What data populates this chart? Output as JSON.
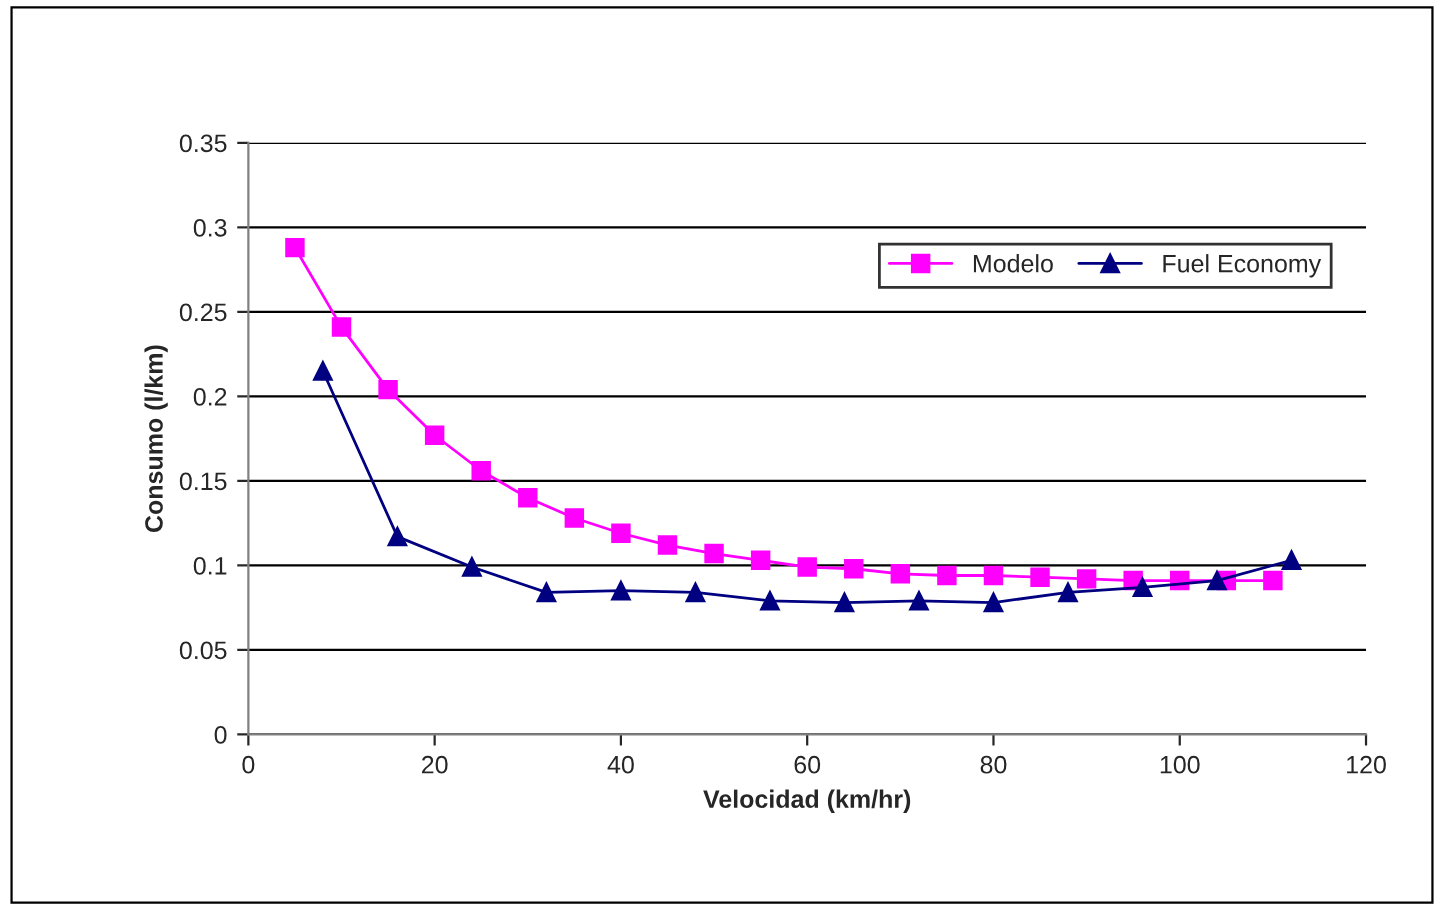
{
  "chart_data": {
    "type": "line",
    "xlabel": "Velocidad (km/hr)",
    "ylabel": "Consumo (l/km)",
    "xlim": [
      0,
      120
    ],
    "xticks": [
      0,
      20,
      40,
      60,
      80,
      100,
      120
    ],
    "ylim": [
      0,
      0.35
    ],
    "yticks": [
      0,
      0.05,
      0.1,
      0.15,
      0.2,
      0.25,
      0.3,
      0.35
    ],
    "grid": "y",
    "legend": "top right",
    "series": [
      {
        "name": "Modelo",
        "color": "#ff00ff",
        "marker": "square",
        "x": [
          5,
          10,
          15,
          20,
          25,
          30,
          35,
          40,
          45,
          50,
          55,
          60,
          65,
          70,
          75,
          80,
          85,
          90,
          95,
          100,
          105,
          110
        ],
        "values": [
          0.288,
          0.241,
          0.204,
          0.177,
          0.156,
          0.14,
          0.128,
          0.119,
          0.112,
          0.107,
          0.103,
          0.099,
          0.098,
          0.095,
          0.094,
          0.094,
          0.093,
          0.092,
          0.091,
          0.091,
          0.091,
          0.091
        ]
      },
      {
        "name": "Fuel Economy",
        "color": "#000080",
        "marker": "triangle",
        "x": [
          8,
          16,
          24,
          32,
          40,
          48,
          56,
          64,
          72,
          80,
          88,
          96,
          104,
          112
        ],
        "values": [
          0.215,
          0.117,
          0.099,
          0.084,
          0.085,
          0.084,
          0.079,
          0.078,
          0.079,
          0.078,
          0.084,
          0.087,
          0.091,
          0.103
        ]
      }
    ]
  }
}
